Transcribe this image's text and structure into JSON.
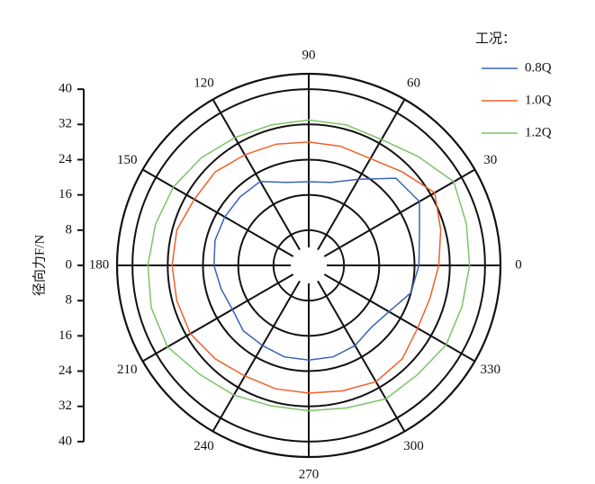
{
  "chart_data": {
    "type": "polar",
    "y_label": "径向力F/N",
    "legend_title": "工况：",
    "rlim": [
      0,
      43.5
    ],
    "rticks": [
      0,
      8,
      16,
      24,
      32,
      40
    ],
    "rings": [
      8,
      16,
      24,
      32,
      40
    ],
    "angle_ticks": [
      0,
      30,
      60,
      90,
      120,
      150,
      180,
      210,
      240,
      270,
      300,
      330
    ],
    "theta": [
      0,
      15,
      30,
      45,
      60,
      75,
      90,
      105,
      120,
      135,
      150,
      165,
      180,
      195,
      210,
      225,
      240,
      255,
      270,
      285,
      300,
      315,
      330,
      345
    ],
    "series": [
      {
        "name": "0.8Q",
        "color": "#3a62b8",
        "values": [
          25,
          26,
          29,
          28,
          22.6,
          19.5,
          19,
          19.5,
          22,
          22,
          22,
          22,
          21.5,
          20.6,
          20,
          21,
          21,
          21.5,
          21.5,
          21.5,
          21,
          20,
          21,
          24
        ]
      },
      {
        "name": "1.0Q",
        "color": "#f0602a",
        "values": [
          29.5,
          31,
          33,
          30,
          28,
          28,
          28,
          28.5,
          29,
          30,
          30,
          31,
          31,
          31,
          31,
          30,
          29,
          29,
          29,
          29.5,
          30.5,
          30,
          28.5,
          28.5
        ]
      },
      {
        "name": "1.2Q",
        "color": "#7cc467",
        "values": [
          36.5,
          37,
          38,
          35,
          33,
          33,
          33,
          33,
          33.5,
          34.5,
          35.5,
          36,
          36.5,
          37,
          37,
          35,
          34,
          33,
          33,
          33.5,
          35,
          35,
          36,
          36
        ]
      }
    ]
  }
}
